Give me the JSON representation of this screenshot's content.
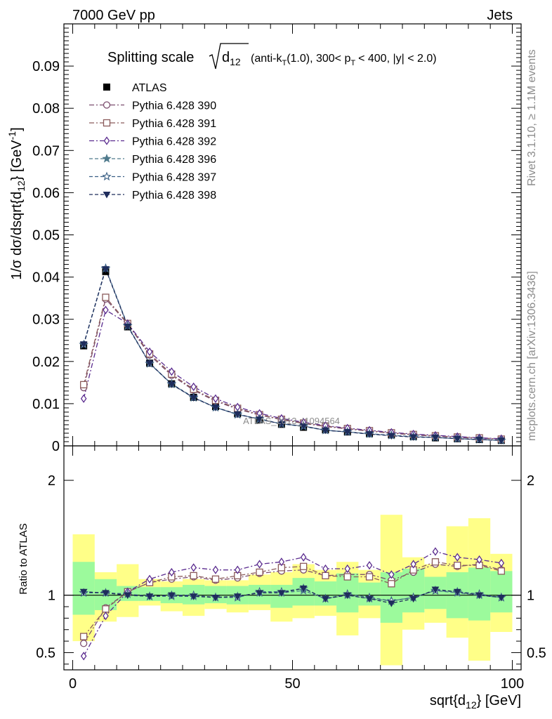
{
  "header": {
    "energy_label": "7000 GeV pp",
    "process_label": "Jets"
  },
  "side_labels": {
    "rivet": "Rivet 3.1.10, ≥ 1.1M events",
    "mcplots": "mcplots.cern.ch [arXiv:1306.3436]"
  },
  "watermark": "ATLAS_2013_I1094564",
  "chart_data": [
    {
      "type": "line",
      "title_parts": {
        "prefix": "Splitting scale",
        "sqrt_arg": "d",
        "sqrt_sub": "12",
        "suffix_1": "(anti-k",
        "suffix_sub": "T",
        "suffix_2": "(1.0), 300< p",
        "suffix_sub2": "T",
        "suffix_3": "< 400, |y| < 2.0)"
      },
      "ylabel": "1/σ dσ/dsqrt{d12} [GeV⁻¹]",
      "ylabel_parts": {
        "a": "1/σ dσ/dsqrt{d",
        "sub": "12",
        "b": "} [GeV",
        "sup": "-1",
        "c": "]"
      },
      "xlim": [
        -2,
        102
      ],
      "ylim": [
        0,
        0.1
      ],
      "yticks": [
        0,
        0.01,
        0.02,
        0.03,
        0.04,
        0.05,
        0.06,
        0.07,
        0.08,
        0.09
      ],
      "ytick_labels": [
        "0",
        "0.01",
        "0.02",
        "0.03",
        "0.04",
        "0.05",
        "0.06",
        "0.07",
        "0.08",
        "0.09"
      ],
      "legend_position": "top-left",
      "x": [
        2.5,
        7.5,
        12.5,
        17.5,
        22.5,
        27.5,
        32.5,
        37.5,
        42.5,
        47.5,
        52.5,
        57.5,
        62.5,
        67.5,
        72.5,
        77.5,
        82.5,
        87.5,
        92.5,
        97.5
      ],
      "data": {
        "name": "ATLAS",
        "values": [
          0.0237,
          0.0413,
          0.0282,
          0.0196,
          0.0147,
          0.0115,
          0.0093,
          0.0076,
          0.0062,
          0.0051,
          0.0044,
          0.0038,
          0.0033,
          0.0029,
          0.0026,
          0.0022,
          0.0019,
          0.0017,
          0.0015,
          0.0013
        ],
        "errors": [
          0.0003,
          0.0005,
          0.0003,
          0.0002,
          0.0002,
          0.0002,
          0.0001,
          0.0001,
          0.0001,
          0.0001,
          0.0001,
          0.0001,
          0.0001,
          0.0001,
          0.0001,
          0.0001,
          0.0001,
          0.0001,
          0.0001,
          0.0001
        ]
      },
      "series": [
        {
          "name": "Pythia 6.428 390",
          "color": "#7b4d6e",
          "marker": "circle-open",
          "dash": "dashdot",
          "values": [
            0.0138,
            0.0348,
            0.0289,
            0.0215,
            0.0167,
            0.0132,
            0.0106,
            0.0087,
            0.0073,
            0.0062,
            0.0053,
            0.0046,
            0.004,
            0.0035,
            0.003,
            0.0026,
            0.0023,
            0.002,
            0.0018,
            0.0016
          ]
        },
        {
          "name": "Pythia 6.428 391",
          "color": "#8a5a5a",
          "marker": "square-open",
          "dash": "dashdot",
          "values": [
            0.0145,
            0.0352,
            0.029,
            0.0218,
            0.017,
            0.0134,
            0.0108,
            0.0089,
            0.0074,
            0.0063,
            0.0054,
            0.0047,
            0.0041,
            0.0036,
            0.0031,
            0.0027,
            0.0024,
            0.0021,
            0.0019,
            0.0016
          ]
        },
        {
          "name": "Pythia 6.428 392",
          "color": "#5b2c8f",
          "marker": "diamond-open",
          "dash": "dashdot",
          "values": [
            0.0112,
            0.0322,
            0.029,
            0.0223,
            0.0176,
            0.014,
            0.0112,
            0.0092,
            0.0077,
            0.0065,
            0.0056,
            0.0048,
            0.0042,
            0.0037,
            0.0032,
            0.0028,
            0.0025,
            0.0022,
            0.0019,
            0.0017
          ]
        },
        {
          "name": "Pythia 6.428 396",
          "color": "#4f7a8c",
          "marker": "star-filled",
          "dash": "dashed",
          "values": [
            0.024,
            0.042,
            0.0284,
            0.0195,
            0.0146,
            0.0114,
            0.0091,
            0.0075,
            0.0063,
            0.0052,
            0.0046,
            0.0037,
            0.0033,
            0.0028,
            0.0025,
            0.0021,
            0.002,
            0.0017,
            0.0015,
            0.0013
          ]
        },
        {
          "name": "Pythia 6.428 397",
          "color": "#3a5f85",
          "marker": "star-open",
          "dash": "dashed",
          "values": [
            0.024,
            0.0421,
            0.0285,
            0.0195,
            0.0147,
            0.0115,
            0.0091,
            0.0074,
            0.0064,
            0.0052,
            0.0047,
            0.0037,
            0.0033,
            0.0029,
            0.0025,
            0.0022,
            0.002,
            0.0017,
            0.0015,
            0.0013
          ]
        },
        {
          "name": "Pythia 6.428 398",
          "color": "#1f2d5c",
          "marker": "triangle-down-filled",
          "dash": "dashed",
          "values": [
            0.0241,
            0.0419,
            0.0283,
            0.0196,
            0.0146,
            0.0114,
            0.0091,
            0.0075,
            0.0063,
            0.0052,
            0.0047,
            0.0037,
            0.0033,
            0.0028,
            0.0024,
            0.0021,
            0.002,
            0.0017,
            0.0015,
            0.0013
          ]
        }
      ]
    },
    {
      "type": "line",
      "ylabel": "Ratio to ATLAS",
      "xlabel": "sqrt{d12} [GeV]",
      "xlabel_parts": {
        "a": "sqrt{d",
        "sub": "12",
        "b": "} [GeV]"
      },
      "xlim": [
        -2,
        102
      ],
      "ylim": [
        0.35,
        2.3
      ],
      "yticks": [
        0.5,
        1,
        2
      ],
      "ytick_labels": [
        "0.5",
        "1",
        "2"
      ],
      "xticks": [
        0,
        50,
        100
      ],
      "xtick_labels": [
        "0",
        "50",
        "100"
      ],
      "reference_line": 1,
      "x": [
        2.5,
        7.5,
        12.5,
        17.5,
        22.5,
        27.5,
        32.5,
        37.5,
        42.5,
        47.5,
        52.5,
        57.5,
        62.5,
        67.5,
        72.5,
        77.5,
        82.5,
        87.5,
        92.5,
        97.5
      ],
      "bands": {
        "inner": {
          "color": "#9cfa9c",
          "lo": [
            0.83,
            0.87,
            0.95,
            0.95,
            0.93,
            0.92,
            0.93,
            0.92,
            0.92,
            0.89,
            0.91,
            0.91,
            0.85,
            0.91,
            0.76,
            0.85,
            0.88,
            0.8,
            0.78,
            0.85
          ],
          "hi": [
            1.29,
            1.14,
            1.08,
            1.07,
            1.07,
            1.09,
            1.08,
            1.08,
            1.09,
            1.09,
            1.15,
            1.12,
            1.19,
            1.11,
            1.2,
            1.23,
            1.16,
            1.2,
            1.24,
            1.21
          ]
        },
        "outer": {
          "color": "#ffff88",
          "lo": [
            0.6,
            0.77,
            0.81,
            0.91,
            0.86,
            0.82,
            0.88,
            0.85,
            0.87,
            0.77,
            0.8,
            0.82,
            0.65,
            0.8,
            0.39,
            0.7,
            0.76,
            0.63,
            0.43,
            0.68
          ],
          "hi": [
            1.53,
            1.2,
            1.27,
            1.14,
            1.12,
            1.14,
            1.13,
            1.13,
            1.18,
            1.2,
            1.27,
            1.22,
            1.29,
            1.22,
            1.7,
            1.33,
            1.27,
            1.6,
            1.67,
            1.36
          ]
        }
      },
      "data_values": [
        1,
        1,
        1,
        1,
        1,
        1,
        1,
        1,
        1,
        1,
        1,
        1,
        1,
        1,
        1,
        1,
        1,
        1,
        1,
        1
      ],
      "series": [
        {
          "name": "Pythia 6.428 390",
          "values": [
            0.58,
            0.89,
            1.03,
            1.11,
            1.14,
            1.16,
            1.13,
            1.15,
            1.19,
            1.21,
            1.22,
            1.17,
            1.18,
            1.18,
            1.13,
            1.2,
            1.27,
            1.25,
            1.27,
            1.22
          ]
        },
        {
          "name": "Pythia 6.428 391",
          "values": [
            0.64,
            0.88,
            1.03,
            1.11,
            1.16,
            1.17,
            1.14,
            1.17,
            1.2,
            1.24,
            1.25,
            1.17,
            1.16,
            1.16,
            1.1,
            1.22,
            1.29,
            1.26,
            1.26,
            1.21
          ]
        },
        {
          "name": "Pythia 6.428 392",
          "values": [
            0.47,
            0.82,
            1.03,
            1.14,
            1.2,
            1.24,
            1.22,
            1.22,
            1.27,
            1.29,
            1.33,
            1.23,
            1.23,
            1.26,
            1.18,
            1.27,
            1.38,
            1.33,
            1.31,
            1.28
          ]
        },
        {
          "name": "Pythia 6.428 396",
          "values": [
            1.02,
            1.02,
            1.01,
            0.99,
            0.99,
            0.99,
            0.98,
            0.99,
            1.02,
            1.02,
            1.04,
            0.97,
            1.0,
            0.97,
            0.95,
            0.98,
            1.04,
            1.02,
            1.0,
            0.98
          ]
        },
        {
          "name": "Pythia 6.428 397",
          "values": [
            1.02,
            1.02,
            1.01,
            0.99,
            1.0,
            1.0,
            0.98,
            0.98,
            1.03,
            1.03,
            1.06,
            0.97,
            1.01,
            0.98,
            0.95,
            0.98,
            1.04,
            1.03,
            1.01,
            0.98
          ]
        },
        {
          "name": "Pythia 6.428 398",
          "values": [
            1.03,
            1.02,
            1.0,
            0.99,
            1.0,
            0.99,
            0.98,
            0.99,
            1.02,
            1.02,
            1.06,
            0.97,
            1.0,
            0.97,
            0.93,
            0.97,
            1.05,
            1.03,
            1.0,
            0.98
          ]
        }
      ]
    }
  ]
}
